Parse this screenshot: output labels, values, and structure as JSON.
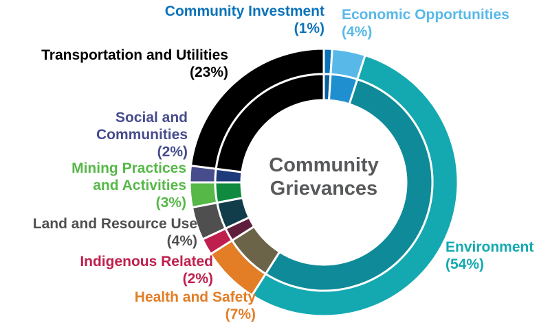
{
  "chart_data": {
    "type": "pie",
    "style": "donut",
    "center_label": [
      "Community",
      "Grievances"
    ],
    "start": "top, clockwise",
    "slices": [
      {
        "label": [
          "Community Investment"
        ],
        "pct_text": "(1%)",
        "value": 1,
        "color": "#0a72b9",
        "inner_color": "#0a5e9a"
      },
      {
        "label": [
          "Economic Opportunities"
        ],
        "pct_text": "(4%)",
        "value": 4,
        "color": "#58b9e8",
        "inner_color": "#1f8fd0"
      },
      {
        "label": [
          "Environment"
        ],
        "pct_text": "(54%)",
        "value": 54,
        "color": "#14a9b1",
        "inner_color": "#0f8a98"
      },
      {
        "label": [
          "Health and Safety"
        ],
        "pct_text": "(7%)",
        "value": 7,
        "color": "#e37d26",
        "inner_color": "#6b6448"
      },
      {
        "label": [
          "Indigenous Related"
        ],
        "pct_text": "(2%)",
        "value": 2,
        "color": "#bf1f4e",
        "inner_color": "#5e1f3d"
      },
      {
        "label": [
          "Land and Resource Use"
        ],
        "pct_text": "(4%)",
        "value": 4,
        "color": "#4f4f4f",
        "inner_color": "#113d4b"
      },
      {
        "label": [
          "Mining Practices",
          "and Activities"
        ],
        "pct_text": "(3%)",
        "value": 3,
        "color": "#56b847",
        "inner_color": "#0f8a3f"
      },
      {
        "label": [
          "Social and",
          "Communities"
        ],
        "pct_text": "(2%)",
        "value": 2,
        "color": "#474c8c",
        "inner_color": "#1d3a7a"
      },
      {
        "label": [
          "Transportation and Utilities"
        ],
        "pct_text": "(23%)",
        "value": 23,
        "color": "#000000",
        "inner_color": "#000000"
      }
    ]
  }
}
